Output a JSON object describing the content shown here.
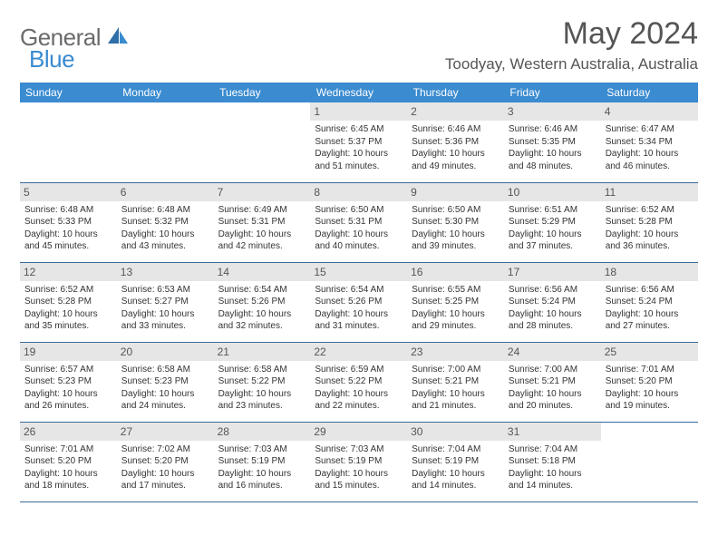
{
  "logo": {
    "part1": "General",
    "part2": "Blue"
  },
  "title": "May 2024",
  "location": "Toodyay, Western Australia, Australia",
  "headers": [
    "Sunday",
    "Monday",
    "Tuesday",
    "Wednesday",
    "Thursday",
    "Friday",
    "Saturday"
  ],
  "colors": {
    "header_bg": "#3a8bd0",
    "header_text": "#ffffff",
    "daynum_bg": "#e6e6e6",
    "row_border": "#3a6a9a",
    "title_color": "#555555",
    "logo_gray": "#6b6b6b",
    "logo_blue": "#3a8bd0"
  },
  "fonts": {
    "title_size": 34,
    "location_size": 17,
    "header_size": 12,
    "daynum_size": 12,
    "cell_size": 10
  },
  "weeks": [
    [
      null,
      null,
      null,
      {
        "n": "1",
        "sr": "Sunrise: 6:45 AM",
        "ss": "Sunset: 5:37 PM",
        "dl": "Daylight: 10 hours and 51 minutes."
      },
      {
        "n": "2",
        "sr": "Sunrise: 6:46 AM",
        "ss": "Sunset: 5:36 PM",
        "dl": "Daylight: 10 hours and 49 minutes."
      },
      {
        "n": "3",
        "sr": "Sunrise: 6:46 AM",
        "ss": "Sunset: 5:35 PM",
        "dl": "Daylight: 10 hours and 48 minutes."
      },
      {
        "n": "4",
        "sr": "Sunrise: 6:47 AM",
        "ss": "Sunset: 5:34 PM",
        "dl": "Daylight: 10 hours and 46 minutes."
      }
    ],
    [
      {
        "n": "5",
        "sr": "Sunrise: 6:48 AM",
        "ss": "Sunset: 5:33 PM",
        "dl": "Daylight: 10 hours and 45 minutes."
      },
      {
        "n": "6",
        "sr": "Sunrise: 6:48 AM",
        "ss": "Sunset: 5:32 PM",
        "dl": "Daylight: 10 hours and 43 minutes."
      },
      {
        "n": "7",
        "sr": "Sunrise: 6:49 AM",
        "ss": "Sunset: 5:31 PM",
        "dl": "Daylight: 10 hours and 42 minutes."
      },
      {
        "n": "8",
        "sr": "Sunrise: 6:50 AM",
        "ss": "Sunset: 5:31 PM",
        "dl": "Daylight: 10 hours and 40 minutes."
      },
      {
        "n": "9",
        "sr": "Sunrise: 6:50 AM",
        "ss": "Sunset: 5:30 PM",
        "dl": "Daylight: 10 hours and 39 minutes."
      },
      {
        "n": "10",
        "sr": "Sunrise: 6:51 AM",
        "ss": "Sunset: 5:29 PM",
        "dl": "Daylight: 10 hours and 37 minutes."
      },
      {
        "n": "11",
        "sr": "Sunrise: 6:52 AM",
        "ss": "Sunset: 5:28 PM",
        "dl": "Daylight: 10 hours and 36 minutes."
      }
    ],
    [
      {
        "n": "12",
        "sr": "Sunrise: 6:52 AM",
        "ss": "Sunset: 5:28 PM",
        "dl": "Daylight: 10 hours and 35 minutes."
      },
      {
        "n": "13",
        "sr": "Sunrise: 6:53 AM",
        "ss": "Sunset: 5:27 PM",
        "dl": "Daylight: 10 hours and 33 minutes."
      },
      {
        "n": "14",
        "sr": "Sunrise: 6:54 AM",
        "ss": "Sunset: 5:26 PM",
        "dl": "Daylight: 10 hours and 32 minutes."
      },
      {
        "n": "15",
        "sr": "Sunrise: 6:54 AM",
        "ss": "Sunset: 5:26 PM",
        "dl": "Daylight: 10 hours and 31 minutes."
      },
      {
        "n": "16",
        "sr": "Sunrise: 6:55 AM",
        "ss": "Sunset: 5:25 PM",
        "dl": "Daylight: 10 hours and 29 minutes."
      },
      {
        "n": "17",
        "sr": "Sunrise: 6:56 AM",
        "ss": "Sunset: 5:24 PM",
        "dl": "Daylight: 10 hours and 28 minutes."
      },
      {
        "n": "18",
        "sr": "Sunrise: 6:56 AM",
        "ss": "Sunset: 5:24 PM",
        "dl": "Daylight: 10 hours and 27 minutes."
      }
    ],
    [
      {
        "n": "19",
        "sr": "Sunrise: 6:57 AM",
        "ss": "Sunset: 5:23 PM",
        "dl": "Daylight: 10 hours and 26 minutes."
      },
      {
        "n": "20",
        "sr": "Sunrise: 6:58 AM",
        "ss": "Sunset: 5:23 PM",
        "dl": "Daylight: 10 hours and 24 minutes."
      },
      {
        "n": "21",
        "sr": "Sunrise: 6:58 AM",
        "ss": "Sunset: 5:22 PM",
        "dl": "Daylight: 10 hours and 23 minutes."
      },
      {
        "n": "22",
        "sr": "Sunrise: 6:59 AM",
        "ss": "Sunset: 5:22 PM",
        "dl": "Daylight: 10 hours and 22 minutes."
      },
      {
        "n": "23",
        "sr": "Sunrise: 7:00 AM",
        "ss": "Sunset: 5:21 PM",
        "dl": "Daylight: 10 hours and 21 minutes."
      },
      {
        "n": "24",
        "sr": "Sunrise: 7:00 AM",
        "ss": "Sunset: 5:21 PM",
        "dl": "Daylight: 10 hours and 20 minutes."
      },
      {
        "n": "25",
        "sr": "Sunrise: 7:01 AM",
        "ss": "Sunset: 5:20 PM",
        "dl": "Daylight: 10 hours and 19 minutes."
      }
    ],
    [
      {
        "n": "26",
        "sr": "Sunrise: 7:01 AM",
        "ss": "Sunset: 5:20 PM",
        "dl": "Daylight: 10 hours and 18 minutes."
      },
      {
        "n": "27",
        "sr": "Sunrise: 7:02 AM",
        "ss": "Sunset: 5:20 PM",
        "dl": "Daylight: 10 hours and 17 minutes."
      },
      {
        "n": "28",
        "sr": "Sunrise: 7:03 AM",
        "ss": "Sunset: 5:19 PM",
        "dl": "Daylight: 10 hours and 16 minutes."
      },
      {
        "n": "29",
        "sr": "Sunrise: 7:03 AM",
        "ss": "Sunset: 5:19 PM",
        "dl": "Daylight: 10 hours and 15 minutes."
      },
      {
        "n": "30",
        "sr": "Sunrise: 7:04 AM",
        "ss": "Sunset: 5:19 PM",
        "dl": "Daylight: 10 hours and 14 minutes."
      },
      {
        "n": "31",
        "sr": "Sunrise: 7:04 AM",
        "ss": "Sunset: 5:18 PM",
        "dl": "Daylight: 10 hours and 14 minutes."
      },
      null
    ]
  ]
}
